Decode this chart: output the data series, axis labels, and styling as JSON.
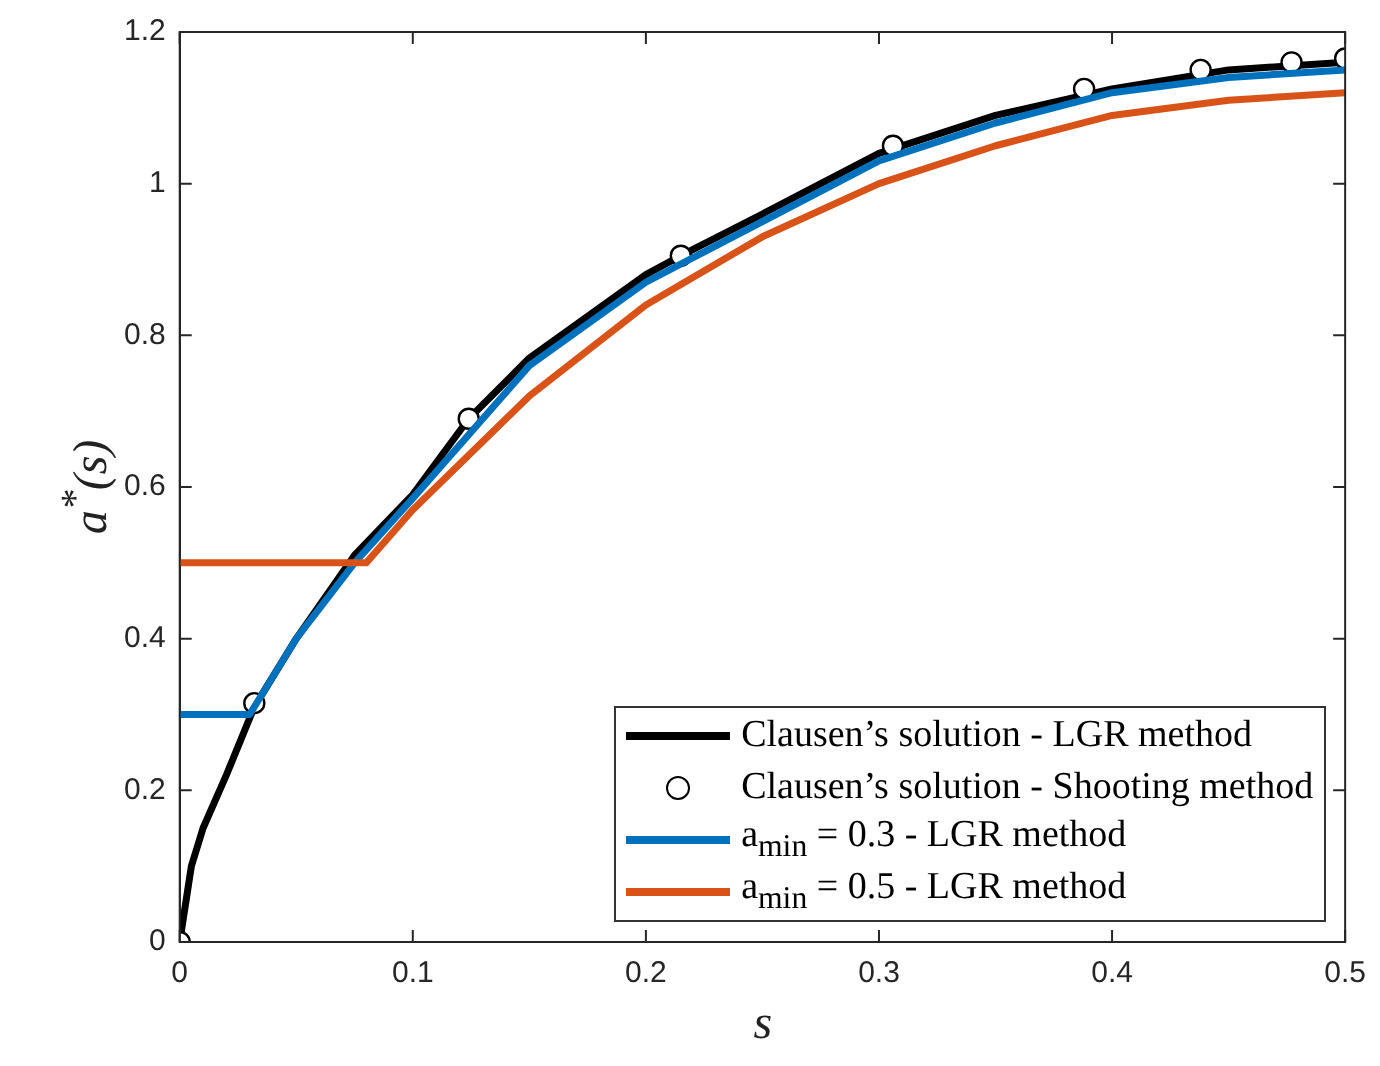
{
  "chart_data": {
    "type": "line",
    "xlabel": "s",
    "ylabel": "a$^{*}$(s)",
    "xlim": [
      0,
      0.5
    ],
    "ylim": [
      0,
      1.2
    ],
    "xticks": [
      0,
      0.1,
      0.2,
      0.3,
      0.4,
      0.5
    ],
    "yticks": [
      0,
      0.2,
      0.4,
      0.6,
      0.8,
      1,
      1.2
    ],
    "grid": false,
    "legend": "bottom right",
    "line_style": "solid",
    "series": [
      {
        "name": "Clausen’s solution - LGR method",
        "marker": "none",
        "color": "#000000",
        "x": [
          0,
          0.005,
          0.01,
          0.02,
          0.032,
          0.05,
          0.075,
          0.1,
          0.124,
          0.15,
          0.2,
          0.215,
          0.25,
          0.3,
          0.35,
          0.4,
          0.45,
          0.5
        ],
        "values": [
          0,
          0.1,
          0.15,
          0.22,
          0.31,
          0.4,
          0.51,
          0.59,
          0.69,
          0.77,
          0.88,
          0.905,
          0.96,
          1.04,
          1.09,
          1.125,
          1.15,
          1.16
        ]
      },
      {
        "name": "Clausen’s solution - Shooting method",
        "type": "scatter",
        "marker": "circle",
        "color": "#000000",
        "x": [
          0,
          0.032,
          0.124,
          0.215,
          0.306,
          0.388,
          0.438,
          0.477,
          0.5
        ],
        "values": [
          0,
          0.315,
          0.69,
          0.905,
          1.05,
          1.125,
          1.15,
          1.16,
          1.165
        ]
      },
      {
        "name": "a$_{min}$ = 0.3 - LGR method",
        "marker": "none",
        "color": "#0072bd",
        "x": [
          0,
          0.03,
          0.05,
          0.075,
          0.1,
          0.15,
          0.2,
          0.25,
          0.3,
          0.35,
          0.4,
          0.45,
          0.5
        ],
        "values": [
          0.3,
          0.3,
          0.4,
          0.5,
          0.585,
          0.76,
          0.87,
          0.95,
          1.03,
          1.08,
          1.12,
          1.14,
          1.15
        ]
      },
      {
        "name": "a$_{min}$ = 0.5 - LGR method",
        "marker": "none",
        "color": "#d95319",
        "x": [
          0,
          0.08,
          0.1,
          0.15,
          0.2,
          0.25,
          0.3,
          0.35,
          0.4,
          0.45,
          0.5
        ],
        "values": [
          0.5,
          0.5,
          0.57,
          0.72,
          0.84,
          0.93,
          1.0,
          1.05,
          1.09,
          1.11,
          1.12
        ]
      }
    ]
  }
}
